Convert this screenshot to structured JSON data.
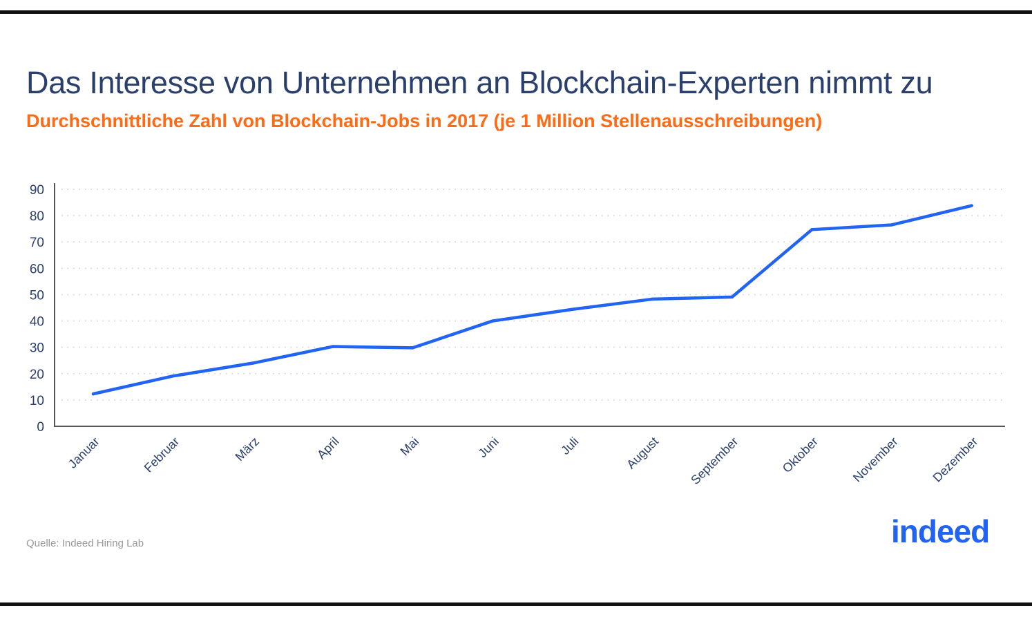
{
  "title": "Das Interesse von Unternehmen an Blockchain-Experten nimmt zu",
  "subtitle": "Durchschnittliche Zahl von Blockchain-Jobs in 2017 (je 1 Million Stellenausschreibungen)",
  "source": "Quelle: Indeed Hiring Lab",
  "logo_text": "indeed",
  "colors": {
    "line": "#2164f3",
    "title": "#2b3f6c",
    "subtitle": "#ff6a13"
  },
  "chart_data": {
    "type": "line",
    "title": "Das Interesse von Unternehmen an Blockchain-Experten nimmt zu",
    "subtitle": "Durchschnittliche Zahl von Blockchain-Jobs in 2017 (je 1 Million Stellenausschreibungen)",
    "xlabel": "",
    "ylabel": "",
    "categories": [
      "Januar",
      "Februar",
      "März",
      "April",
      "Mai",
      "Juni",
      "Juli",
      "August",
      "September",
      "Oktober",
      "November",
      "Dezember"
    ],
    "values": [
      12.3,
      19.1,
      24.0,
      30.3,
      29.8,
      40.0,
      44.4,
      48.3,
      49.1,
      74.7,
      76.5,
      83.8
    ],
    "ylim": [
      0,
      90
    ],
    "yticks": [
      0,
      10,
      20,
      30,
      40,
      50,
      60,
      70,
      80,
      90
    ],
    "grid": "horizontal dotted",
    "legend": "none"
  }
}
